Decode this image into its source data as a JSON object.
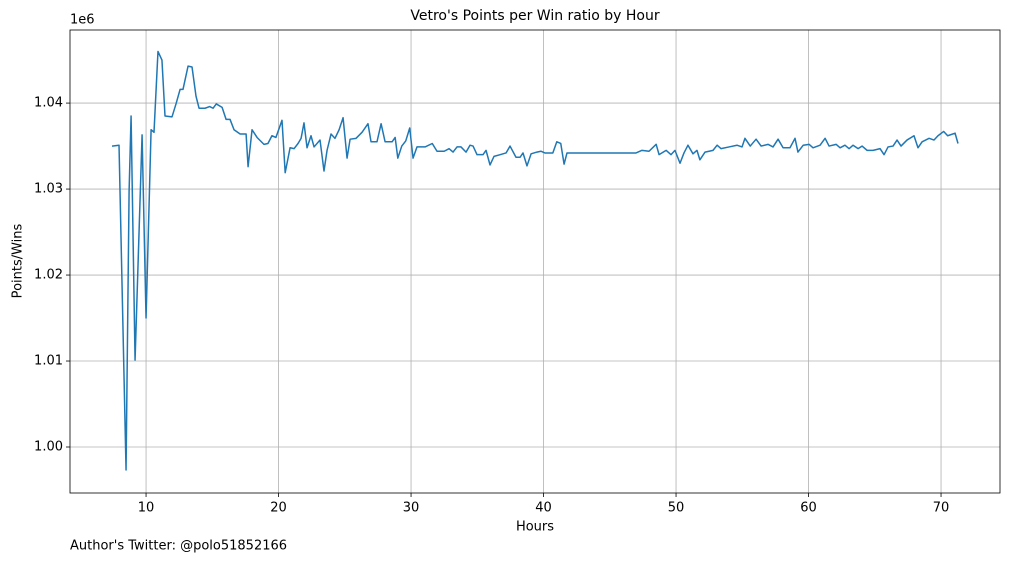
{
  "chart_data": {
    "type": "line",
    "title": "Vetro's Points per Win ratio by Hour",
    "xlabel": "Hours",
    "ylabel": "Points/Wins",
    "y_offset_label": "1e6",
    "footnote": "Author's Twitter: @polo51852166",
    "x": [
      7.43,
      7.96,
      8.49,
      8.72,
      8.87,
      9.17,
      9.7,
      10.0,
      10.38,
      10.6,
      10.9,
      11.2,
      11.43,
      11.96,
      12.26,
      12.57,
      12.79,
      13.17,
      13.47,
      13.77,
      14.0,
      14.45,
      14.8,
      15.06,
      15.3,
      15.74,
      16.04,
      16.34,
      16.64,
      17.1,
      17.55,
      17.7,
      18.0,
      18.38,
      18.9,
      19.2,
      19.5,
      19.8,
      20.1,
      20.26,
      20.5,
      20.87,
      21.17,
      21.47,
      21.7,
      21.92,
      22.15,
      22.45,
      22.68,
      23.13,
      23.43,
      23.66,
      23.96,
      24.26,
      24.57,
      24.87,
      25.17,
      25.4,
      25.85,
      26.3,
      26.75,
      26.98,
      27.43,
      27.74,
      28.04,
      28.57,
      28.8,
      29.0,
      29.3,
      29.6,
      29.9,
      30.15,
      30.45,
      31.06,
      31.6,
      31.96,
      32.5,
      32.87,
      33.17,
      33.47,
      33.77,
      34.15,
      34.45,
      34.68,
      34.98,
      35.43,
      35.66,
      35.96,
      36.26,
      36.72,
      37.17,
      37.47,
      37.92,
      38.23,
      38.45,
      38.75,
      39.06,
      39.5,
      39.8,
      40.1,
      40.7,
      41.0,
      41.3,
      41.55,
      41.77,
      46.98,
      47.43,
      47.96,
      48.5,
      48.72,
      49.25,
      49.62,
      49.92,
      50.3,
      50.6,
      50.9,
      51.28,
      51.58,
      51.8,
      52.19,
      52.79,
      53.1,
      53.4,
      54.0,
      54.6,
      54.98,
      55.2,
      55.6,
      56.04,
      56.42,
      56.94,
      57.32,
      57.7,
      58.08,
      58.6,
      58.98,
      59.2,
      59.6,
      60.04,
      60.34,
      60.87,
      61.25,
      61.55,
      62.08,
      62.38,
      62.75,
      63.06,
      63.36,
      63.74,
      64.04,
      64.42,
      64.87,
      65.4,
      65.7,
      66.0,
      66.38,
      66.68,
      66.98,
      67.43,
      67.96,
      68.26,
      68.57,
      69.1,
      69.47,
      69.77,
      70.2,
      70.5,
      71.06,
      71.28
    ],
    "series": [
      {
        "name": "Points/Wins",
        "color": "#1f77b4",
        "values": [
          1.035,
          1.0351,
          0.99733,
          1.0297,
          1.0385,
          1.0101,
          1.0363,
          1.015,
          1.0369,
          1.0366,
          1.046,
          1.045,
          1.0385,
          1.0384,
          1.0399,
          1.0416,
          1.0416,
          1.0443,
          1.0442,
          1.0408,
          1.0394,
          1.0394,
          1.0396,
          1.0394,
          1.0399,
          1.0395,
          1.0381,
          1.0381,
          1.0369,
          1.0364,
          1.0364,
          1.0326,
          1.0369,
          1.036,
          1.0352,
          1.0353,
          1.0362,
          1.036,
          1.0373,
          1.038,
          1.0319,
          1.0348,
          1.0347,
          1.0353,
          1.0359,
          1.0377,
          1.0348,
          1.0362,
          1.0349,
          1.0357,
          1.0321,
          1.0345,
          1.0364,
          1.0359,
          1.0369,
          1.0383,
          1.0336,
          1.0358,
          1.0359,
          1.0366,
          1.0376,
          1.0355,
          1.0355,
          1.0376,
          1.0355,
          1.0355,
          1.036,
          1.0336,
          1.035,
          1.0356,
          1.0371,
          1.0336,
          1.0349,
          1.0349,
          1.0353,
          1.0344,
          1.0344,
          1.0347,
          1.0343,
          1.0349,
          1.0349,
          1.0343,
          1.0351,
          1.035,
          1.034,
          1.034,
          1.0345,
          1.0328,
          1.0338,
          1.034,
          1.0342,
          1.035,
          1.0337,
          1.0337,
          1.0342,
          1.0327,
          1.0341,
          1.0343,
          1.0344,
          1.0342,
          1.0342,
          1.0355,
          1.0353,
          1.0329,
          1.0342,
          1.0342,
          1.0345,
          1.0344,
          1.0352,
          1.034,
          1.0345,
          1.034,
          1.0345,
          1.033,
          1.0342,
          1.0351,
          1.0341,
          1.0345,
          1.0334,
          1.0343,
          1.0345,
          1.0351,
          1.0347,
          1.0349,
          1.0351,
          1.0349,
          1.0359,
          1.035,
          1.0358,
          1.035,
          1.0352,
          1.0349,
          1.0358,
          1.0348,
          1.0348,
          1.0359,
          1.0343,
          1.0351,
          1.0352,
          1.0348,
          1.0351,
          1.0359,
          1.035,
          1.0352,
          1.0348,
          1.0351,
          1.0347,
          1.0351,
          1.0347,
          1.035,
          1.0345,
          1.0345,
          1.0347,
          1.034,
          1.0349,
          1.035,
          1.0357,
          1.035,
          1.0357,
          1.0362,
          1.0348,
          1.0355,
          1.0359,
          1.0357,
          1.0362,
          1.0367,
          1.0362,
          1.0365,
          1.0353
        ]
      }
    ],
    "xlim": [
      4.26,
      74.45
    ],
    "xticks": [
      10,
      20,
      30,
      40,
      50,
      60,
      70
    ],
    "ylim": [
      0.99465,
      1.0485
    ],
    "yticks": [
      {
        "value": 1.0,
        "label": "1.00"
      },
      {
        "value": 1.01,
        "label": "1.01"
      },
      {
        "value": 1.02,
        "label": "1.02"
      },
      {
        "value": 1.03,
        "label": "1.03"
      },
      {
        "value": 1.04,
        "label": "1.04"
      }
    ],
    "grid": true
  }
}
